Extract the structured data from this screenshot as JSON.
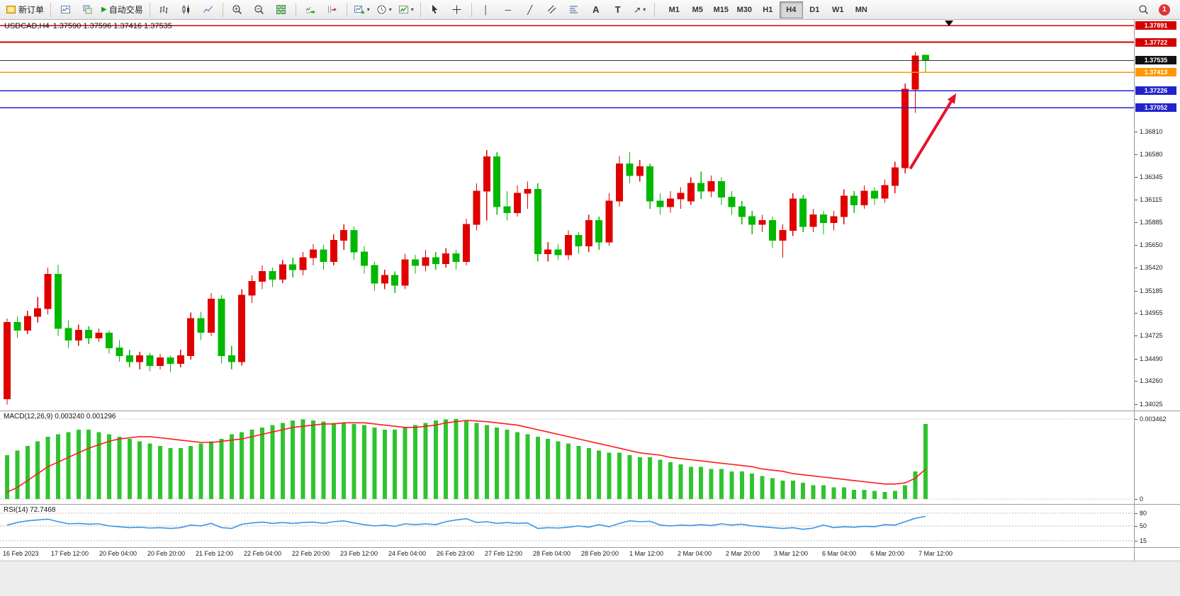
{
  "toolbar": {
    "new_order_label": "新订单",
    "autotrading_label": "自动交易",
    "timeframes": [
      "M1",
      "M5",
      "M15",
      "M30",
      "H1",
      "H4",
      "D1",
      "W1",
      "MN"
    ],
    "active_timeframe": "H4",
    "notification_count": "1"
  },
  "icons": {
    "caret": "▾",
    "play": "▶",
    "vertical_line": "│",
    "horizontal_line": "─",
    "trend_line": "╱",
    "text_tool": "A",
    "label_tool": "T",
    "arrow_tool": "↗"
  },
  "chart": {
    "title_symbol": "USDCAD,H4",
    "title_ohlc": "1.37590 1.37596 1.37416 1.37535",
    "price_axis_ticks": [
      "1.36810",
      "1.36580",
      "1.36345",
      "1.36115",
      "1.35885",
      "1.35650",
      "1.35420",
      "1.35185",
      "1.34955",
      "1.34725",
      "1.34490",
      "1.34260",
      "1.34025"
    ],
    "levels": [
      {
        "label": "1.37891",
        "price": 1.37891,
        "line_color": "#d40000",
        "badge_bg": "#d40000",
        "badge_fg": "#ffffff"
      },
      {
        "label": "1.37722",
        "price": 1.37722,
        "line_color": "#d40000",
        "badge_bg": "#d40000",
        "badge_fg": "#ffffff"
      },
      {
        "label": "1.37535",
        "price": 1.37535,
        "line_color": "#333333",
        "badge_bg": "#111111",
        "badge_fg": "#ffffff"
      },
      {
        "label": "1.37413",
        "price": 1.37413,
        "line_color": "#ff9800",
        "badge_bg": "#ff9800",
        "badge_fg": "#ffffff"
      },
      {
        "label": "1.37226",
        "price": 1.37226,
        "line_color": "#2222cc",
        "badge_bg": "#2222cc",
        "badge_fg": "#ffffff"
      },
      {
        "label": "1.37052",
        "price": 1.37052,
        "line_color": "#2222cc",
        "badge_bg": "#2222cc",
        "badge_fg": "#ffffff"
      }
    ],
    "time_axis": [
      "16 Feb 2023",
      "17 Feb 12:00",
      "20 Feb 04:00",
      "20 Feb 20:00",
      "21 Feb 12:00",
      "22 Feb 04:00",
      "22 Feb 20:00",
      "23 Feb 12:00",
      "24 Feb 04:00",
      "26 Feb 23:00",
      "27 Feb 12:00",
      "28 Feb 04:00",
      "28 Feb 20:00",
      "1 Mar 12:00",
      "2 Mar 04:00",
      "2 Mar 20:00",
      "3 Mar 12:00",
      "6 Mar 04:00",
      "6 Mar 20:00",
      "7 Mar 12:00"
    ]
  },
  "macd": {
    "label": "MACD(12,26,9) 0.003240 0.001296",
    "axis_max": "0.003462",
    "axis_min": "0"
  },
  "rsi": {
    "label": "RSI(14) 72.7468",
    "axis_levels": [
      "80",
      "50",
      "15"
    ]
  },
  "chart_data": {
    "type": "candlestick",
    "symbol": "USDCAD",
    "timeframe": "H4",
    "up_color": "#e00000",
    "down_color": "#00b800",
    "price_range": [
      1.3396,
      1.3795
    ],
    "candles": [
      [
        1.3408,
        1.349,
        1.3402,
        1.3486
      ],
      [
        1.3486,
        1.3492,
        1.347,
        1.3478
      ],
      [
        1.3478,
        1.3498,
        1.3474,
        1.3492
      ],
      [
        1.3492,
        1.3512,
        1.3486,
        1.35
      ],
      [
        1.35,
        1.3542,
        1.3494,
        1.3535
      ],
      [
        1.3535,
        1.3545,
        1.3472,
        1.348
      ],
      [
        1.348,
        1.3488,
        1.346,
        1.3468
      ],
      [
        1.3468,
        1.3484,
        1.3462,
        1.3478
      ],
      [
        1.3478,
        1.3482,
        1.3464,
        1.347
      ],
      [
        1.347,
        1.348,
        1.3466,
        1.3475
      ],
      [
        1.3475,
        1.3478,
        1.3454,
        1.346
      ],
      [
        1.346,
        1.3468,
        1.3446,
        1.3452
      ],
      [
        1.3452,
        1.3458,
        1.344,
        1.3446
      ],
      [
        1.3446,
        1.3456,
        1.3438,
        1.3452
      ],
      [
        1.3452,
        1.3455,
        1.3436,
        1.3442
      ],
      [
        1.3442,
        1.3454,
        1.3438,
        1.345
      ],
      [
        1.345,
        1.3452,
        1.3435,
        1.3444
      ],
      [
        1.3444,
        1.3458,
        1.344,
        1.3452
      ],
      [
        1.3452,
        1.3496,
        1.3448,
        1.349
      ],
      [
        1.349,
        1.3497,
        1.3468,
        1.3476
      ],
      [
        1.3476,
        1.3516,
        1.3472,
        1.351
      ],
      [
        1.351,
        1.3514,
        1.3444,
        1.3452
      ],
      [
        1.3452,
        1.3462,
        1.3438,
        1.3446
      ],
      [
        1.3446,
        1.352,
        1.3442,
        1.3514
      ],
      [
        1.3514,
        1.3534,
        1.3506,
        1.3528
      ],
      [
        1.3528,
        1.3544,
        1.352,
        1.3538
      ],
      [
        1.3538,
        1.3542,
        1.3522,
        1.353
      ],
      [
        1.353,
        1.355,
        1.3526,
        1.3545
      ],
      [
        1.3545,
        1.3552,
        1.3532,
        1.354
      ],
      [
        1.354,
        1.3558,
        1.3534,
        1.3552
      ],
      [
        1.3552,
        1.3566,
        1.3544,
        1.356
      ],
      [
        1.356,
        1.3565,
        1.354,
        1.3548
      ],
      [
        1.3548,
        1.3576,
        1.3544,
        1.357
      ],
      [
        1.357,
        1.3586,
        1.356,
        1.358
      ],
      [
        1.358,
        1.3584,
        1.355,
        1.3558
      ],
      [
        1.3558,
        1.3564,
        1.3536,
        1.3544
      ],
      [
        1.3544,
        1.3548,
        1.3518,
        1.3526
      ],
      [
        1.3526,
        1.354,
        1.352,
        1.3534
      ],
      [
        1.3534,
        1.3538,
        1.3516,
        1.3524
      ],
      [
        1.3524,
        1.3556,
        1.352,
        1.355
      ],
      [
        1.355,
        1.3555,
        1.3536,
        1.3544
      ],
      [
        1.3544,
        1.356,
        1.3538,
        1.3552
      ],
      [
        1.3552,
        1.3558,
        1.354,
        1.3546
      ],
      [
        1.3546,
        1.3562,
        1.3542,
        1.3556
      ],
      [
        1.3556,
        1.356,
        1.354,
        1.3548
      ],
      [
        1.3548,
        1.3592,
        1.3544,
        1.3586
      ],
      [
        1.3586,
        1.3628,
        1.358,
        1.362
      ],
      [
        1.362,
        1.3662,
        1.359,
        1.3655
      ],
      [
        1.3655,
        1.366,
        1.3596,
        1.3604
      ],
      [
        1.3604,
        1.362,
        1.359,
        1.3598
      ],
      [
        1.3598,
        1.3626,
        1.3594,
        1.3618
      ],
      [
        1.3618,
        1.363,
        1.3602,
        1.3622
      ],
      [
        1.3622,
        1.3628,
        1.3548,
        1.3556
      ],
      [
        1.3556,
        1.3568,
        1.3548,
        1.356
      ],
      [
        1.356,
        1.3566,
        1.355,
        1.3555
      ],
      [
        1.3555,
        1.358,
        1.355,
        1.3575
      ],
      [
        1.3575,
        1.3578,
        1.3556,
        1.3564
      ],
      [
        1.3564,
        1.3596,
        1.3558,
        1.359
      ],
      [
        1.359,
        1.3594,
        1.356,
        1.3568
      ],
      [
        1.3568,
        1.3618,
        1.3564,
        1.361
      ],
      [
        1.361,
        1.3656,
        1.3604,
        1.3648
      ],
      [
        1.3648,
        1.366,
        1.3628,
        1.3636
      ],
      [
        1.3636,
        1.3652,
        1.363,
        1.3645
      ],
      [
        1.3645,
        1.3648,
        1.3602,
        1.361
      ],
      [
        1.361,
        1.3618,
        1.3596,
        1.3604
      ],
      [
        1.3604,
        1.362,
        1.3598,
        1.3612
      ],
      [
        1.3612,
        1.3624,
        1.3602,
        1.3618
      ],
      [
        1.361,
        1.3634,
        1.3606,
        1.3628
      ],
      [
        1.3628,
        1.364,
        1.3612,
        1.362
      ],
      [
        1.362,
        1.3636,
        1.3614,
        1.363
      ],
      [
        1.363,
        1.3634,
        1.3606,
        1.3614
      ],
      [
        1.3614,
        1.362,
        1.3596,
        1.3604
      ],
      [
        1.3604,
        1.361,
        1.3586,
        1.3594
      ],
      [
        1.3594,
        1.36,
        1.3576,
        1.3586
      ],
      [
        1.3586,
        1.3596,
        1.3578,
        1.359
      ],
      [
        1.359,
        1.3594,
        1.3562,
        1.357
      ],
      [
        1.357,
        1.3586,
        1.3552,
        1.358
      ],
      [
        1.358,
        1.3618,
        1.3574,
        1.3612
      ],
      [
        1.3612,
        1.3616,
        1.3578,
        1.3584
      ],
      [
        1.3584,
        1.3602,
        1.3578,
        1.3596
      ],
      [
        1.3596,
        1.36,
        1.3576,
        1.3588
      ],
      [
        1.3588,
        1.36,
        1.358,
        1.3594
      ],
      [
        1.3594,
        1.3622,
        1.3586,
        1.3615
      ],
      [
        1.3615,
        1.362,
        1.3598,
        1.3606
      ],
      [
        1.3606,
        1.3626,
        1.3602,
        1.362
      ],
      [
        1.362,
        1.3624,
        1.3606,
        1.3613
      ],
      [
        1.3613,
        1.3632,
        1.3608,
        1.3626
      ],
      [
        1.3626,
        1.365,
        1.3618,
        1.3644
      ],
      [
        1.3644,
        1.373,
        1.3638,
        1.3724
      ],
      [
        1.3724,
        1.3762,
        1.37,
        1.3758
      ],
      [
        1.3759,
        1.37596,
        1.37416,
        1.37535
      ]
    ],
    "indicators": {
      "macd": {
        "type": "bar",
        "params": "12,26,9",
        "histogram_color": "#2fc42f",
        "signal_color": "#ff1a1a",
        "scale_max": 0.003462,
        "histogram": [
          0.0019,
          0.0021,
          0.0023,
          0.0025,
          0.0027,
          0.0028,
          0.0029,
          0.003,
          0.003,
          0.0029,
          0.0028,
          0.0027,
          0.0026,
          0.0025,
          0.0024,
          0.0023,
          0.0022,
          0.0022,
          0.0023,
          0.0024,
          0.0025,
          0.0026,
          0.0028,
          0.0029,
          0.003,
          0.0031,
          0.0032,
          0.0033,
          0.0034,
          0.00345,
          0.0034,
          0.00335,
          0.0033,
          0.0033,
          0.00325,
          0.0032,
          0.0031,
          0.003,
          0.003,
          0.0031,
          0.0032,
          0.0033,
          0.0034,
          0.00345,
          0.003462,
          0.0034,
          0.0033,
          0.0032,
          0.0031,
          0.003,
          0.0029,
          0.0028,
          0.0027,
          0.0026,
          0.0025,
          0.0024,
          0.0023,
          0.0022,
          0.0021,
          0.002,
          0.002,
          0.0019,
          0.0018,
          0.0018,
          0.0017,
          0.0016,
          0.0015,
          0.0014,
          0.0014,
          0.0013,
          0.0013,
          0.0012,
          0.0012,
          0.0011,
          0.001,
          0.0009,
          0.0008,
          0.0008,
          0.0007,
          0.0006,
          0.0006,
          0.0005,
          0.0005,
          0.0004,
          0.0004,
          0.00035,
          0.0003,
          0.00035,
          0.0006,
          0.0012,
          0.00324
        ],
        "signal": [
          0.0003,
          0.0005,
          0.0008,
          0.0011,
          0.0014,
          0.0016,
          0.0018,
          0.002,
          0.0022,
          0.00235,
          0.0025,
          0.0026,
          0.00265,
          0.0027,
          0.0027,
          0.00265,
          0.0026,
          0.00255,
          0.0025,
          0.00245,
          0.00245,
          0.0025,
          0.00255,
          0.0026,
          0.0027,
          0.0028,
          0.0029,
          0.003,
          0.0031,
          0.00315,
          0.0032,
          0.00325,
          0.00325,
          0.0033,
          0.0033,
          0.0033,
          0.00325,
          0.0032,
          0.00315,
          0.0031,
          0.0031,
          0.00315,
          0.0032,
          0.0033,
          0.00335,
          0.0034,
          0.00338,
          0.00335,
          0.0033,
          0.00325,
          0.0032,
          0.0031,
          0.003,
          0.0029,
          0.0028,
          0.0027,
          0.0026,
          0.0025,
          0.0024,
          0.0023,
          0.0022,
          0.0021,
          0.002,
          0.00195,
          0.0019,
          0.0018,
          0.00175,
          0.0017,
          0.00165,
          0.0016,
          0.00155,
          0.0015,
          0.00145,
          0.0014,
          0.0013,
          0.00125,
          0.0012,
          0.0011,
          0.00105,
          0.001,
          0.00095,
          0.0009,
          0.00085,
          0.0008,
          0.00075,
          0.0007,
          0.00065,
          0.00065,
          0.0007,
          0.0009,
          0.001296
        ]
      },
      "rsi": {
        "type": "line",
        "params": "14",
        "color": "#3a94e8",
        "guides": [
          80,
          50,
          15
        ],
        "values": [
          52,
          58,
          62,
          64,
          66,
          60,
          55,
          56,
          54,
          55,
          50,
          48,
          46,
          47,
          45,
          46,
          44,
          46,
          52,
          50,
          56,
          46,
          44,
          54,
          57,
          59,
          56,
          58,
          56,
          58,
          59,
          56,
          60,
          62,
          57,
          53,
          50,
          52,
          49,
          55,
          53,
          55,
          53,
          60,
          64,
          67,
          58,
          60,
          56,
          58,
          56,
          57,
          44,
          46,
          45,
          47,
          50,
          47,
          53,
          48,
          56,
          62,
          60,
          61,
          52,
          50,
          52,
          51,
          53,
          51,
          55,
          52,
          54,
          50,
          48,
          46,
          44,
          46,
          42,
          45,
          52,
          46,
          48,
          47,
          49,
          48,
          53,
          52,
          60,
          68,
          72.7
        ]
      }
    },
    "annotations": {
      "arrow": {
        "from_index": 88.5,
        "from_price": 1.3643,
        "to_index": 93.0,
        "to_price": 1.372,
        "color": "#e8112d"
      },
      "top_marker_index": 92.3
    }
  }
}
